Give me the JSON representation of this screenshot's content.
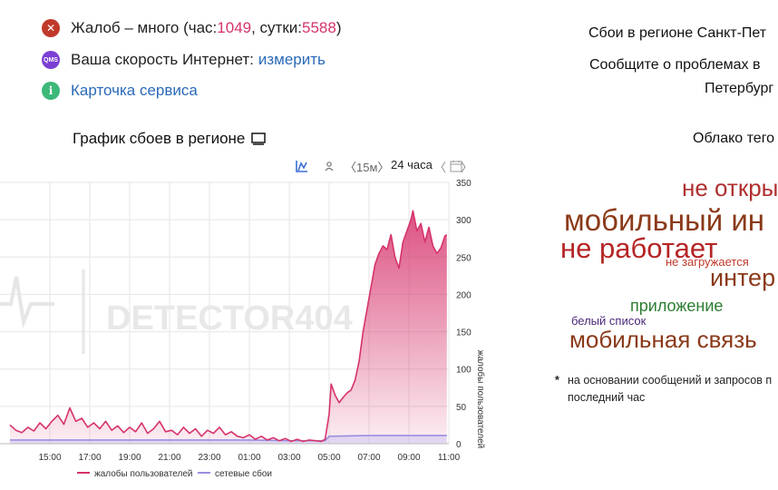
{
  "status": {
    "complaints_prefix": "Жалоб – много (час: ",
    "complaints_hour": "1049",
    "complaints_mid": ", сутки: ",
    "complaints_day": "5588",
    "complaints_suffix": ")",
    "speed_label": "Ваша скорость Интернет: ",
    "speed_link": "измерить",
    "service_card": "Карточка сервиса",
    "qms_icon_text": "QMS"
  },
  "chart_section": {
    "title": "График сбоев в регионе",
    "toolbar": {
      "range_15m": "〈15м〉",
      "range_24h": "24 часа",
      "nav_left": "〈",
      "nav_right": "〉"
    },
    "watermark": "DETECTOR404"
  },
  "right_panel": {
    "line1": "Сбои в регионе Санкт-Пет",
    "line2": "Сообщите о проблемах в",
    "line3": "Петербург",
    "cloud_title": "Облако тего",
    "tags": [
      {
        "text": "не откры",
        "color": "#b03030"
      },
      {
        "text": "мобильный ин",
        "color": "#8b3a1a"
      },
      {
        "text": "не работает",
        "color": "#b52424"
      },
      {
        "text": "не загружается",
        "color": "#c0392b"
      },
      {
        "text": "интер",
        "color": "#8b3a1a"
      },
      {
        "text": "приложение",
        "color": "#2e7d32"
      },
      {
        "text": "белый список",
        "color": "#4a2a7a"
      },
      {
        "text": "мобильная связь",
        "color": "#8b3a1a"
      }
    ],
    "footnote_star": "*",
    "footnote_line1": "на основании сообщений и запросов п",
    "footnote_line2": "последний час"
  },
  "chart_data": {
    "type": "area",
    "x_ticks": [
      "15:00",
      "17:00",
      "19:00",
      "21:00",
      "23:00",
      "01:00",
      "03:00",
      "05:00",
      "07:00",
      "09:00",
      "11:00"
    ],
    "y_ticks": [
      "0",
      "50",
      "100",
      "150",
      "200",
      "250",
      "300",
      "350"
    ],
    "ylabel": "жалобы пользователей",
    "ylim": [
      0,
      350
    ],
    "series": [
      {
        "name": "жалобы пользователей",
        "color": "#d6336c",
        "points": [
          [
            13.0,
            25
          ],
          [
            13.3,
            18
          ],
          [
            13.6,
            15
          ],
          [
            13.9,
            22
          ],
          [
            14.2,
            17
          ],
          [
            14.5,
            28
          ],
          [
            14.8,
            20
          ],
          [
            15.1,
            30
          ],
          [
            15.4,
            38
          ],
          [
            15.7,
            26
          ],
          [
            16.0,
            48
          ],
          [
            16.3,
            30
          ],
          [
            16.6,
            34
          ],
          [
            16.9,
            22
          ],
          [
            17.2,
            28
          ],
          [
            17.5,
            20
          ],
          [
            17.8,
            30
          ],
          [
            18.1,
            18
          ],
          [
            18.4,
            24
          ],
          [
            18.7,
            15
          ],
          [
            19.0,
            22
          ],
          [
            19.3,
            16
          ],
          [
            19.6,
            28
          ],
          [
            19.9,
            14
          ],
          [
            20.2,
            20
          ],
          [
            20.5,
            30
          ],
          [
            20.8,
            16
          ],
          [
            21.1,
            18
          ],
          [
            21.4,
            12
          ],
          [
            21.7,
            22
          ],
          [
            22.0,
            14
          ],
          [
            22.3,
            20
          ],
          [
            22.6,
            10
          ],
          [
            22.9,
            18
          ],
          [
            23.2,
            14
          ],
          [
            23.5,
            22
          ],
          [
            23.8,
            12
          ],
          [
            24.1,
            16
          ],
          [
            24.4,
            10
          ],
          [
            24.7,
            8
          ],
          [
            25.0,
            12
          ],
          [
            25.3,
            6
          ],
          [
            25.6,
            10
          ],
          [
            25.9,
            5
          ],
          [
            26.2,
            8
          ],
          [
            26.5,
            4
          ],
          [
            26.8,
            7
          ],
          [
            27.1,
            3
          ],
          [
            27.4,
            6
          ],
          [
            27.7,
            3
          ],
          [
            28.0,
            5
          ],
          [
            28.3,
            4
          ],
          [
            28.6,
            3
          ],
          [
            28.8,
            6
          ],
          [
            29.0,
            40
          ],
          [
            29.1,
            80
          ],
          [
            29.3,
            65
          ],
          [
            29.5,
            55
          ],
          [
            29.7,
            62
          ],
          [
            29.9,
            68
          ],
          [
            30.1,
            72
          ],
          [
            30.3,
            85
          ],
          [
            30.5,
            110
          ],
          [
            30.7,
            150
          ],
          [
            30.9,
            180
          ],
          [
            31.1,
            210
          ],
          [
            31.3,
            240
          ],
          [
            31.5,
            255
          ],
          [
            31.7,
            265
          ],
          [
            31.9,
            260
          ],
          [
            32.1,
            280
          ],
          [
            32.3,
            250
          ],
          [
            32.5,
            235
          ],
          [
            32.7,
            270
          ],
          [
            32.9,
            285
          ],
          [
            33.1,
            300
          ],
          [
            33.2,
            312
          ],
          [
            33.4,
            285
          ],
          [
            33.6,
            295
          ],
          [
            33.8,
            270
          ],
          [
            34.0,
            290
          ],
          [
            34.2,
            265
          ],
          [
            34.4,
            255
          ],
          [
            34.6,
            262
          ],
          [
            34.8,
            278
          ],
          [
            34.9,
            280
          ]
        ]
      },
      {
        "name": "сетевые сбои",
        "color": "#9a8fe0",
        "points": [
          [
            13.0,
            5
          ],
          [
            15.0,
            5
          ],
          [
            17.0,
            5
          ],
          [
            19.0,
            5
          ],
          [
            21.0,
            5
          ],
          [
            23.0,
            5
          ],
          [
            25.0,
            5
          ],
          [
            27.0,
            4
          ],
          [
            28.8,
            4
          ],
          [
            29.0,
            10
          ],
          [
            31.0,
            11
          ],
          [
            33.0,
            11
          ],
          [
            34.9,
            11
          ]
        ]
      }
    ],
    "legend": "bottom-center",
    "grid": true
  }
}
